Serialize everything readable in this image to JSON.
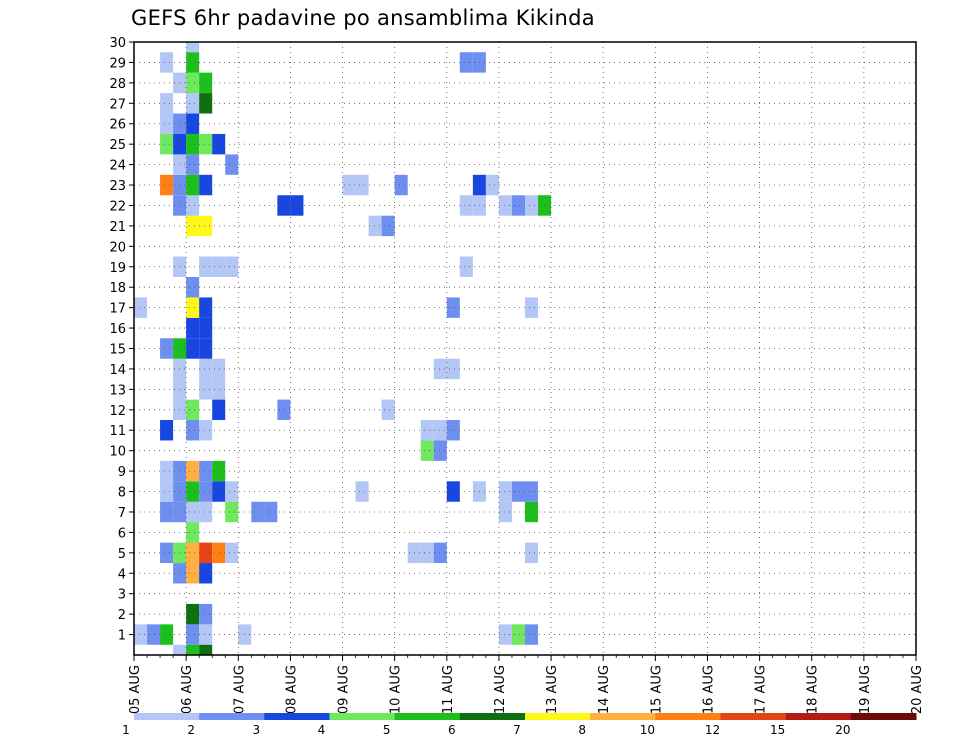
{
  "chart_data": {
    "type": "heatmap",
    "title": "GEFS 6hr padavine po ansamblima Kikinda",
    "x_axis": {
      "ticks": [
        "05 AUG",
        "06 AUG",
        "07 AUG",
        "08 AUG",
        "09 AUG",
        "10 AUG",
        "11 AUG",
        "12 AUG",
        "13 AUG",
        "14 AUG",
        "15 AUG",
        "16 AUG",
        "17 AUG",
        "18 AUG",
        "19 AUG",
        "20 AUG"
      ],
      "range": [
        "05 AUG 00Z",
        "20 AUG 00Z"
      ],
      "step_hours": 6
    },
    "y_axis": {
      "ticks": [
        1,
        2,
        3,
        4,
        5,
        6,
        7,
        8,
        9,
        10,
        11,
        12,
        13,
        14,
        15,
        16,
        17,
        18,
        19,
        20,
        21,
        22,
        23,
        24,
        25,
        26,
        27,
        28,
        29,
        30
      ],
      "range": [
        0,
        30
      ]
    },
    "grid": true,
    "colorbar": {
      "placement": "bottom",
      "labels": [
        "1",
        "2",
        "3",
        "4",
        "5",
        "6",
        "7",
        "8",
        "10",
        "12",
        "15",
        "20"
      ],
      "colors": [
        "#b3c6f5",
        "#6f8ff0",
        "#1746e0",
        "#6fe85e",
        "#1cbf1c",
        "#0f700f",
        "#fff61a",
        "#ffb040",
        "#ff7f14",
        "#e64414",
        "#b31c14",
        "#6e0a0a"
      ]
    },
    "cells_note": "each cell: [x = forecast step (0 = 05 AUG 00Z, 6 h each), y = ensemble member, c = colour class index]",
    "cells": [
      [
        0,
        1,
        0
      ],
      [
        1,
        1,
        1
      ],
      [
        2,
        1,
        4
      ],
      [
        4,
        1,
        1
      ],
      [
        5,
        1,
        0
      ],
      [
        8,
        1,
        0
      ],
      [
        28,
        1,
        0
      ],
      [
        29,
        1,
        3
      ],
      [
        30,
        1,
        1
      ],
      [
        4,
        2,
        5
      ],
      [
        5,
        2,
        1
      ],
      [
        3,
        4,
        1
      ],
      [
        4,
        4,
        7
      ],
      [
        5,
        4,
        2
      ],
      [
        2,
        5,
        1
      ],
      [
        3,
        5,
        3
      ],
      [
        4,
        5,
        7
      ],
      [
        5,
        5,
        9
      ],
      [
        6,
        5,
        8
      ],
      [
        7,
        5,
        0
      ],
      [
        21,
        5,
        0
      ],
      [
        22,
        5,
        0
      ],
      [
        23,
        5,
        1
      ],
      [
        30,
        5,
        0
      ],
      [
        4,
        6,
        3
      ],
      [
        2,
        7,
        1
      ],
      [
        3,
        7,
        1
      ],
      [
        4,
        7,
        0
      ],
      [
        5,
        7,
        0
      ],
      [
        7,
        7,
        3
      ],
      [
        9,
        7,
        1
      ],
      [
        10,
        7,
        1
      ],
      [
        28,
        7,
        0
      ],
      [
        30,
        7,
        4
      ],
      [
        2,
        8,
        0
      ],
      [
        3,
        8,
        1
      ],
      [
        4,
        8,
        4
      ],
      [
        5,
        8,
        1
      ],
      [
        6,
        8,
        2
      ],
      [
        7,
        8,
        0
      ],
      [
        17,
        8,
        0
      ],
      [
        24,
        8,
        2
      ],
      [
        26,
        8,
        0
      ],
      [
        28,
        8,
        0
      ],
      [
        29,
        8,
        1
      ],
      [
        30,
        8,
        1
      ],
      [
        2,
        9,
        0
      ],
      [
        3,
        9,
        1
      ],
      [
        4,
        9,
        7
      ],
      [
        5,
        9,
        1
      ],
      [
        6,
        9,
        4
      ],
      [
        22,
        10,
        3
      ],
      [
        23,
        10,
        1
      ],
      [
        2,
        11,
        2
      ],
      [
        4,
        11,
        1
      ],
      [
        5,
        11,
        0
      ],
      [
        22,
        11,
        0
      ],
      [
        23,
        11,
        0
      ],
      [
        24,
        11,
        1
      ],
      [
        3,
        12,
        0
      ],
      [
        4,
        12,
        3
      ],
      [
        6,
        12,
        2
      ],
      [
        11,
        12,
        1
      ],
      [
        19,
        12,
        0
      ],
      [
        3,
        13,
        0
      ],
      [
        5,
        13,
        0
      ],
      [
        6,
        13,
        0
      ],
      [
        3,
        14,
        0
      ],
      [
        5,
        14,
        0
      ],
      [
        6,
        14,
        0
      ],
      [
        23,
        14,
        0
      ],
      [
        24,
        14,
        0
      ],
      [
        2,
        15,
        1
      ],
      [
        3,
        15,
        4
      ],
      [
        4,
        15,
        2
      ],
      [
        5,
        15,
        2
      ],
      [
        4,
        16,
        2
      ],
      [
        5,
        16,
        2
      ],
      [
        0,
        17,
        0
      ],
      [
        4,
        17,
        6
      ],
      [
        5,
        17,
        2
      ],
      [
        24,
        17,
        1
      ],
      [
        30,
        17,
        0
      ],
      [
        4,
        18,
        1
      ],
      [
        3,
        19,
        0
      ],
      [
        5,
        19,
        0
      ],
      [
        6,
        19,
        0
      ],
      [
        7,
        19,
        0
      ],
      [
        25,
        19,
        0
      ],
      [
        4,
        21,
        6
      ],
      [
        5,
        21,
        6
      ],
      [
        18,
        21,
        0
      ],
      [
        19,
        21,
        1
      ],
      [
        3,
        22,
        1
      ],
      [
        4,
        22,
        0
      ],
      [
        11,
        22,
        2
      ],
      [
        12,
        22,
        2
      ],
      [
        25,
        22,
        0
      ],
      [
        26,
        22,
        0
      ],
      [
        28,
        22,
        0
      ],
      [
        29,
        22,
        1
      ],
      [
        30,
        22,
        0
      ],
      [
        31,
        22,
        4
      ],
      [
        2,
        23,
        8
      ],
      [
        3,
        23,
        1
      ],
      [
        4,
        23,
        4
      ],
      [
        5,
        23,
        2
      ],
      [
        16,
        23,
        0
      ],
      [
        17,
        23,
        0
      ],
      [
        20,
        23,
        1
      ],
      [
        26,
        23,
        2
      ],
      [
        27,
        23,
        0
      ],
      [
        3,
        24,
        0
      ],
      [
        4,
        24,
        1
      ],
      [
        7,
        24,
        1
      ],
      [
        2,
        25,
        3
      ],
      [
        3,
        25,
        2
      ],
      [
        4,
        25,
        4
      ],
      [
        5,
        25,
        3
      ],
      [
        6,
        25,
        2
      ],
      [
        2,
        26,
        0
      ],
      [
        3,
        26,
        1
      ],
      [
        4,
        26,
        2
      ],
      [
        2,
        27,
        0
      ],
      [
        4,
        27,
        0
      ],
      [
        5,
        27,
        5
      ],
      [
        3,
        28,
        0
      ],
      [
        4,
        28,
        3
      ],
      [
        5,
        28,
        4
      ],
      [
        2,
        29,
        0
      ],
      [
        4,
        29,
        4
      ],
      [
        25,
        29,
        1
      ],
      [
        26,
        29,
        1
      ],
      [
        4,
        30,
        0
      ],
      [
        3,
        0,
        0
      ],
      [
        4,
        0,
        4
      ],
      [
        5,
        0,
        5
      ]
    ]
  }
}
